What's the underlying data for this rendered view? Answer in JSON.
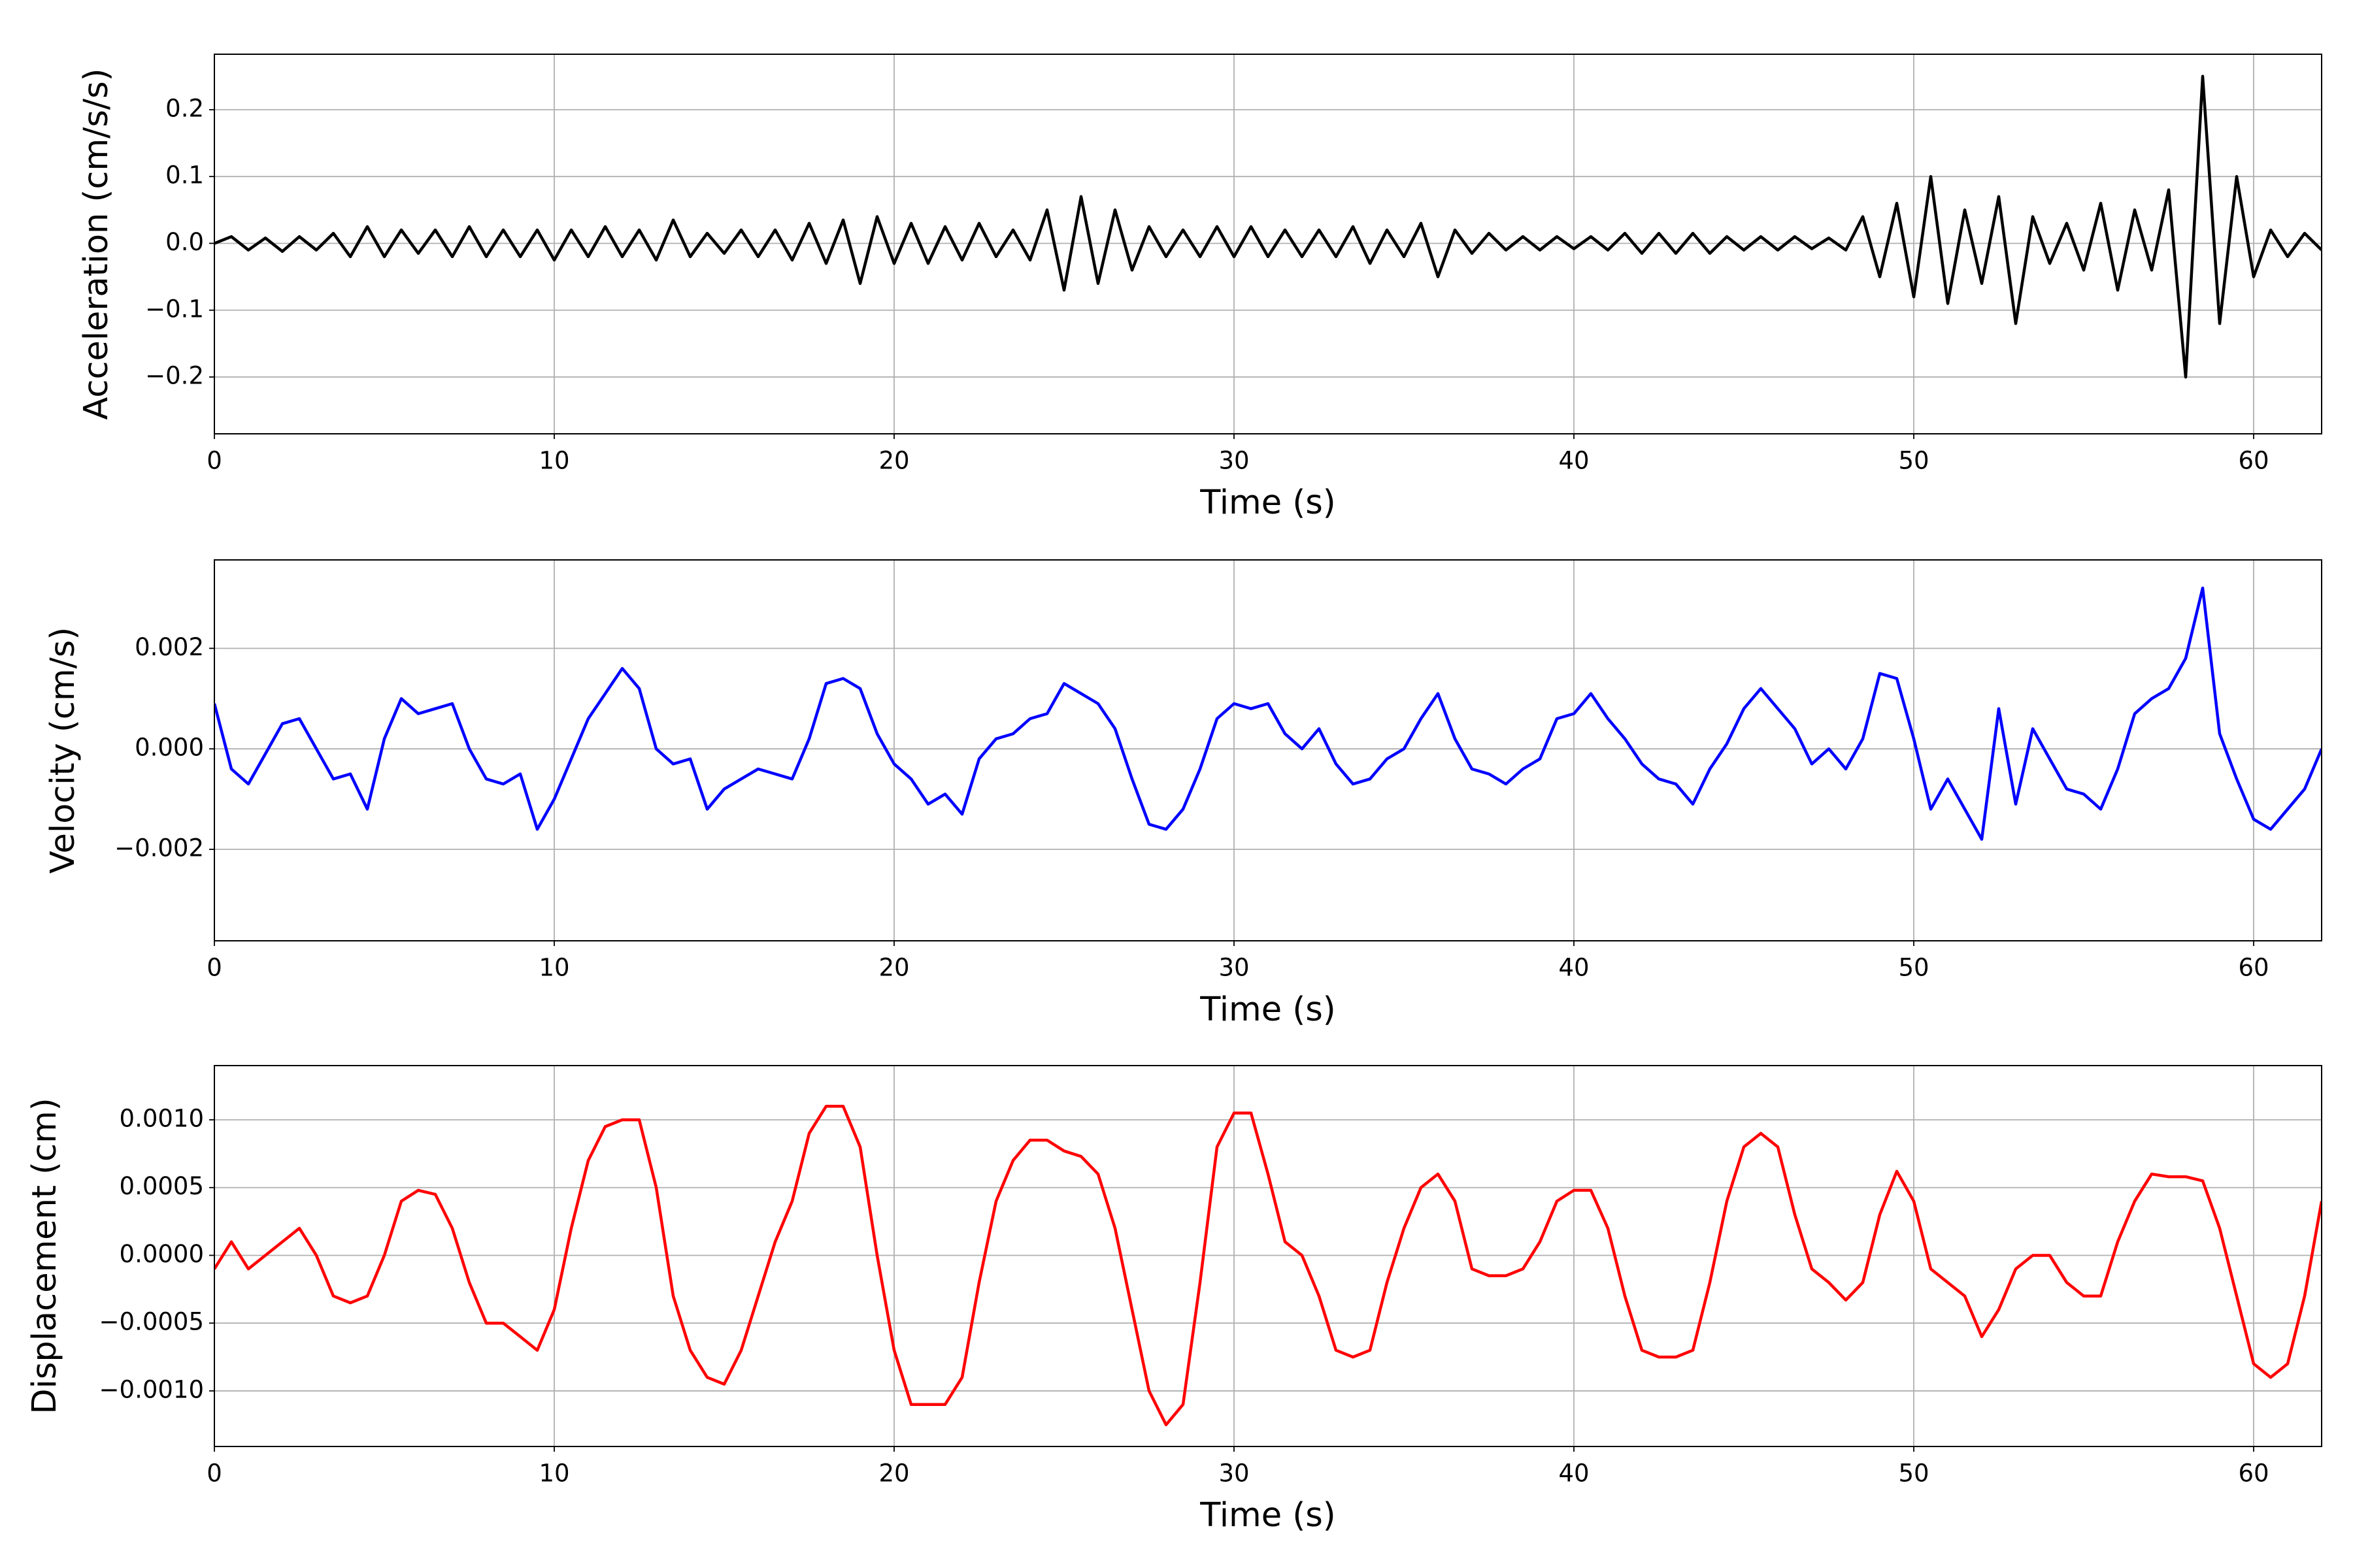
{
  "chart_data": [
    {
      "type": "line",
      "xlabel": "Time (s)",
      "ylabel": "Acceleration (cm/s/s)",
      "color": "#000000",
      "grid": true,
      "xlim": [
        0,
        62
      ],
      "xticks": [
        0,
        10,
        20,
        30,
        40,
        50,
        60
      ],
      "ylim": [
        -0.285,
        0.283
      ],
      "yticks": [
        {
          "value": -0.2,
          "label": "−0.2"
        },
        {
          "value": -0.1,
          "label": "−0.1"
        },
        {
          "value": 0,
          "label": "0.0"
        },
        {
          "value": 0.1,
          "label": "0.1"
        },
        {
          "value": 0.2,
          "label": "0.2"
        }
      ],
      "x": [
        0,
        0.5,
        1,
        1.5,
        2,
        2.5,
        3,
        3.5,
        4,
        4.5,
        5,
        5.5,
        6,
        6.5,
        7,
        7.5,
        8,
        8.5,
        9,
        9.5,
        10,
        10.5,
        11,
        11.5,
        12,
        12.5,
        13,
        13.5,
        14,
        14.5,
        15,
        15.5,
        16,
        16.5,
        17,
        17.5,
        18,
        18.5,
        19,
        19.5,
        20,
        20.5,
        21,
        21.5,
        22,
        22.5,
        23,
        23.5,
        24,
        24.5,
        25,
        25.5,
        26,
        26.5,
        27,
        27.5,
        28,
        28.5,
        29,
        29.5,
        30,
        30.5,
        31,
        31.5,
        32,
        32.5,
        33,
        33.5,
        34,
        34.5,
        35,
        35.5,
        36,
        36.5,
        37,
        37.5,
        38,
        38.5,
        39,
        39.5,
        40,
        40.5,
        41,
        41.5,
        42,
        42.5,
        43,
        43.5,
        44,
        44.5,
        45,
        45.5,
        46,
        46.5,
        47,
        47.5,
        48,
        48.5,
        49,
        49.5,
        50,
        50.5,
        51,
        51.5,
        52,
        52.5,
        53,
        53.5,
        54,
        54.5,
        55,
        55.5,
        56,
        56.5,
        57,
        57.5,
        58,
        58.5,
        59,
        59.5,
        60,
        60.5,
        61,
        61.5,
        62
      ],
      "values": [
        0,
        0.01,
        -0.01,
        0.008,
        -0.012,
        0.01,
        -0.01,
        0.015,
        -0.02,
        0.025,
        -0.02,
        0.02,
        -0.015,
        0.02,
        -0.02,
        0.025,
        -0.02,
        0.02,
        -0.02,
        0.02,
        -0.025,
        0.02,
        -0.02,
        0.025,
        -0.02,
        0.02,
        -0.025,
        0.035,
        -0.02,
        0.015,
        -0.015,
        0.02,
        -0.02,
        0.02,
        -0.025,
        0.03,
        -0.03,
        0.035,
        -0.06,
        0.04,
        -0.03,
        0.03,
        -0.03,
        0.025,
        -0.025,
        0.03,
        -0.02,
        0.02,
        -0.025,
        0.05,
        -0.07,
        0.07,
        -0.06,
        0.05,
        -0.04,
        0.025,
        -0.02,
        0.02,
        -0.02,
        0.025,
        -0.02,
        0.025,
        -0.02,
        0.02,
        -0.02,
        0.02,
        -0.02,
        0.025,
        -0.03,
        0.02,
        -0.02,
        0.03,
        -0.05,
        0.02,
        -0.015,
        0.015,
        -0.01,
        0.01,
        -0.01,
        0.01,
        -0.008,
        0.01,
        -0.01,
        0.015,
        -0.015,
        0.015,
        -0.015,
        0.015,
        -0.015,
        0.01,
        -0.01,
        0.01,
        -0.01,
        0.01,
        -0.008,
        0.008,
        -0.01,
        0.04,
        -0.05,
        0.06,
        -0.08,
        0.1,
        -0.09,
        0.05,
        -0.06,
        0.07,
        -0.12,
        0.04,
        -0.03,
        0.03,
        -0.04,
        0.06,
        -0.07,
        0.05,
        -0.04,
        0.08,
        -0.2,
        0.25,
        -0.12,
        0.1,
        -0.05,
        0.02,
        -0.02,
        0.015,
        -0.01
      ]
    },
    {
      "type": "line",
      "xlabel": "Time (s)",
      "ylabel": "Velocity (cm/s)",
      "color": "#0000ff",
      "grid": true,
      "xlim": [
        0,
        62
      ],
      "xticks": [
        0,
        10,
        20,
        30,
        40,
        50,
        60
      ],
      "ylim": [
        -0.00382,
        0.00376
      ],
      "yticks": [
        {
          "value": -0.002,
          "label": "−0.002"
        },
        {
          "value": 0,
          "label": "0.000"
        },
        {
          "value": 0.002,
          "label": "0.002"
        }
      ],
      "x": [
        0,
        0.5,
        1,
        1.5,
        2,
        2.5,
        3,
        3.5,
        4,
        4.5,
        5,
        5.5,
        6,
        6.5,
        7,
        7.5,
        8,
        8.5,
        9,
        9.5,
        10,
        10.5,
        11,
        11.5,
        12,
        12.5,
        13,
        13.5,
        14,
        14.5,
        15,
        15.5,
        16,
        16.5,
        17,
        17.5,
        18,
        18.5,
        19,
        19.5,
        20,
        20.5,
        21,
        21.5,
        22,
        22.5,
        23,
        23.5,
        24,
        24.5,
        25,
        25.5,
        26,
        26.5,
        27,
        27.5,
        28,
        28.5,
        29,
        29.5,
        30,
        30.5,
        31,
        31.5,
        32,
        32.5,
        33,
        33.5,
        34,
        34.5,
        35,
        35.5,
        36,
        36.5,
        37,
        37.5,
        38,
        38.5,
        39,
        39.5,
        40,
        40.5,
        41,
        41.5,
        42,
        42.5,
        43,
        43.5,
        44,
        44.5,
        45,
        45.5,
        46,
        46.5,
        47,
        47.5,
        48,
        48.5,
        49,
        49.5,
        50,
        50.5,
        51,
        51.5,
        52,
        52.5,
        53,
        53.5,
        54,
        54.5,
        55,
        55.5,
        56,
        56.5,
        57,
        57.5,
        58,
        58.5,
        59,
        59.5,
        60,
        60.5,
        61,
        61.5,
        62
      ],
      "values": [
        0.0009,
        -0.0004,
        -0.0007,
        -0.0001,
        0.0005,
        0.0006,
        0,
        -0.0006,
        -0.0005,
        -0.0012,
        0.0002,
        0.001,
        0.0007,
        0.0008,
        0.0009,
        0,
        -0.0006,
        -0.0007,
        -0.0005,
        -0.0016,
        -0.001,
        -0.0002,
        0.0006,
        0.0011,
        0.0016,
        0.0012,
        0,
        -0.0003,
        -0.0002,
        -0.0012,
        -0.0008,
        -0.0006,
        -0.0004,
        -0.0005,
        -0.0006,
        0.0002,
        0.0013,
        0.0014,
        0.0012,
        0.0003,
        -0.0003,
        -0.0006,
        -0.0011,
        -0.0009,
        -0.0013,
        -0.0002,
        0.0002,
        0.0003,
        0.0006,
        0.0007,
        0.0013,
        0.0011,
        0.0009,
        0.0004,
        -0.0006,
        -0.0015,
        -0.0016,
        -0.0012,
        -0.0004,
        0.0006,
        0.0009,
        0.0008,
        0.0009,
        0.0003,
        0,
        0.0004,
        -0.0003,
        -0.0007,
        -0.0006,
        -0.0002,
        0,
        0.0006,
        0.0011,
        0.0002,
        -0.0004,
        -0.0005,
        -0.0007,
        -0.0004,
        -0.0002,
        0.0006,
        0.0007,
        0.0011,
        0.0006,
        0.0002,
        -0.0003,
        -0.0006,
        -0.0007,
        -0.0011,
        -0.0004,
        0.0001,
        0.0008,
        0.0012,
        0.0008,
        0.0004,
        -0.0003,
        0,
        -0.0004,
        0.0002,
        0.0015,
        0.0014,
        0.0002,
        -0.0012,
        -0.0006,
        -0.0012,
        -0.0018,
        0.0008,
        -0.0011,
        0.0004,
        -0.0002,
        -0.0008,
        -0.0009,
        -0.0012,
        -0.0004,
        0.0007,
        0.001,
        0.0012,
        0.0018,
        0.0032,
        0.0003,
        -0.0006,
        -0.0014,
        -0.0016,
        -0.0012,
        -0.0008,
        0
      ]
    },
    {
      "type": "line",
      "xlabel": "Time (s)",
      "ylabel": "Displacement (cm)",
      "color": "#ff0000",
      "grid": true,
      "xlim": [
        0,
        62
      ],
      "xticks": [
        0,
        10,
        20,
        30,
        40,
        50,
        60
      ],
      "ylim": [
        -0.00141,
        0.0014
      ],
      "yticks": [
        {
          "value": -0.001,
          "label": "−0.0010"
        },
        {
          "value": -0.0005,
          "label": "−0.0005"
        },
        {
          "value": 0,
          "label": "0.0000"
        },
        {
          "value": 0.0005,
          "label": "0.0005"
        },
        {
          "value": 0.001,
          "label": "0.0010"
        }
      ],
      "x": [
        0,
        0.5,
        1,
        1.5,
        2,
        2.5,
        3,
        3.5,
        4,
        4.5,
        5,
        5.5,
        6,
        6.5,
        7,
        7.5,
        8,
        8.5,
        9,
        9.5,
        10,
        10.5,
        11,
        11.5,
        12,
        12.5,
        13,
        13.5,
        14,
        14.5,
        15,
        15.5,
        16,
        16.5,
        17,
        17.5,
        18,
        18.5,
        19,
        19.5,
        20,
        20.5,
        21,
        21.5,
        22,
        22.5,
        23,
        23.5,
        24,
        24.5,
        25,
        25.5,
        26,
        26.5,
        27,
        27.5,
        28,
        28.5,
        29,
        29.5,
        30,
        30.5,
        31,
        31.5,
        32,
        32.5,
        33,
        33.5,
        34,
        34.5,
        35,
        35.5,
        36,
        36.5,
        37,
        37.5,
        38,
        38.5,
        39,
        39.5,
        40,
        40.5,
        41,
        41.5,
        42,
        42.5,
        43,
        43.5,
        44,
        44.5,
        45,
        45.5,
        46,
        46.5,
        47,
        47.5,
        48,
        48.5,
        49,
        49.5,
        50,
        50.5,
        51,
        51.5,
        52,
        52.5,
        53,
        53.5,
        54,
        54.5,
        55,
        55.5,
        56,
        56.5,
        57,
        57.5,
        58,
        58.5,
        59,
        59.5,
        60,
        60.5,
        61,
        61.5,
        62
      ],
      "values": [
        -0.0001,
        0.0001,
        -0.0001,
        0,
        0.0001,
        0.0002,
        0,
        -0.0003,
        -0.00035,
        -0.0003,
        0,
        0.0004,
        0.00048,
        0.00045,
        0.0002,
        -0.0002,
        -0.0005,
        -0.0005,
        -0.0006,
        -0.0007,
        -0.0004,
        0.0002,
        0.0007,
        0.00095,
        0.001,
        0.001,
        0.0005,
        -0.0003,
        -0.0007,
        -0.0009,
        -0.00095,
        -0.0007,
        -0.0003,
        0.0001,
        0.0004,
        0.0009,
        0.0011,
        0.0011,
        0.0008,
        0,
        -0.0007,
        -0.0011,
        -0.0011,
        -0.0011,
        -0.0009,
        -0.0002,
        0.0004,
        0.0007,
        0.00085,
        0.00085,
        0.00077,
        0.00073,
        0.0006,
        0.0002,
        -0.0004,
        -0.001,
        -0.00125,
        -0.0011,
        -0.0002,
        0.0008,
        0.00105,
        0.00105,
        0.0006,
        0.0001,
        0,
        -0.0003,
        -0.0007,
        -0.00075,
        -0.0007,
        -0.0002,
        0.0002,
        0.0005,
        0.0006,
        0.0004,
        -0.0001,
        -0.00015,
        -0.00015,
        -0.0001,
        0.0001,
        0.0004,
        0.00048,
        0.00048,
        0.0002,
        -0.0003,
        -0.0007,
        -0.00075,
        -0.00075,
        -0.0007,
        -0.0002,
        0.0004,
        0.0008,
        0.0009,
        0.0008,
        0.0003,
        -0.0001,
        -0.0002,
        -0.00033,
        -0.0002,
        0.0003,
        0.00062,
        0.0004,
        -0.0001,
        -0.0002,
        -0.0003,
        -0.0006,
        -0.0004,
        -0.0001,
        0,
        0,
        -0.0002,
        -0.0003,
        -0.0003,
        0.0001,
        0.0004,
        0.0006,
        0.00058,
        0.00058,
        0.00055,
        0.0002,
        -0.0003,
        -0.0008,
        -0.0009,
        -0.0008,
        -0.0003,
        0.0004
      ]
    }
  ]
}
